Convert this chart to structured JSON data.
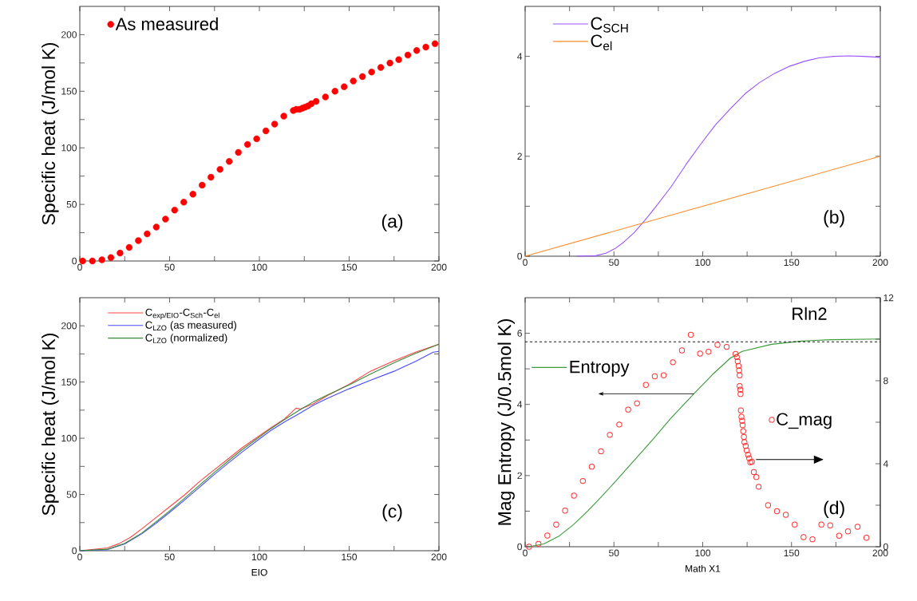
{
  "chart_data": [
    {
      "type": "scatter",
      "ylabel": "Specific heat (J/mol K)",
      "marker": "circle",
      "legend": "top left",
      "xlim": [
        0,
        200
      ],
      "ylim": [
        0,
        225
      ],
      "xticks": [
        0,
        {
          "value": 25,
          "label": null
        },
        50,
        {
          "value": 75,
          "label": null
        },
        100,
        {
          "value": 125,
          "label": null
        },
        150,
        {
          "value": 175,
          "label": null
        },
        200
      ],
      "yticks": [
        0,
        {
          "value": 25,
          "label": null
        },
        50,
        {
          "value": 75,
          "label": null
        },
        100,
        {
          "value": 125,
          "label": null
        },
        150,
        {
          "value": 175,
          "label": null
        },
        200
      ],
      "annotations": [
        "(a)"
      ],
      "series": [
        {
          "name": "As measured",
          "color": "#ff0000",
          "x": [
            1.6,
            7,
            12.3,
            17.3,
            22.4,
            27.5,
            32.6,
            37.5,
            42.6,
            47.7,
            52.8,
            57.9,
            63,
            68.1,
            73,
            78.1,
            83.2,
            88.3,
            93.4,
            98.5,
            103.6,
            108.5,
            113.6,
            118.9,
            120.5,
            122.4,
            124,
            125.5,
            127.1,
            128.9,
            131.6,
            136.8,
            142.1,
            147.2,
            152.3,
            157.4,
            162.5,
            167.6,
            172.7,
            177.6,
            182.7,
            187.6,
            192.7,
            197.8
          ],
          "values": [
            0,
            0,
            1,
            3,
            7,
            12,
            18,
            24,
            30,
            37,
            45,
            52,
            59,
            67,
            74,
            81,
            88,
            96,
            103,
            108,
            115,
            121,
            128,
            133,
            134,
            134,
            135,
            136,
            137,
            139,
            141,
            145,
            150,
            154,
            159,
            163,
            167,
            171,
            175,
            178,
            182,
            186,
            189,
            192
          ]
        }
      ]
    },
    {
      "type": "line",
      "legend": "top left",
      "xlim": [
        0,
        200
      ],
      "ylim": [
        0,
        5
      ],
      "xticks": [
        0,
        {
          "value": 25,
          "label": null
        },
        50,
        {
          "value": 75,
          "label": null
        },
        100,
        {
          "value": 125,
          "label": null
        },
        150,
        {
          "value": 175,
          "label": null
        },
        200
      ],
      "yticks": [
        0,
        {
          "value": 1,
          "label": null
        },
        2,
        {
          "value": 3,
          "label": null
        },
        4
      ],
      "annotations": [
        "(b)"
      ],
      "series": [
        {
          "name": "C$_{SCH}$",
          "color": "#9955ff",
          "x": [
            29,
            39.7,
            45.5,
            50.5,
            55.5,
            61.3,
            67.2,
            73.8,
            82.2,
            90.5,
            98.8,
            107.2,
            115.5,
            123.8,
            132.2,
            140.5,
            148.8,
            157.2,
            165.5,
            173.8,
            182.2,
            190.5,
            200
          ],
          "values": [
            0,
            0.01,
            0.06,
            0.15,
            0.28,
            0.47,
            0.71,
            1.0,
            1.39,
            1.83,
            2.24,
            2.63,
            2.95,
            3.25,
            3.48,
            3.66,
            3.8,
            3.9,
            3.97,
            4.0,
            4.01,
            4.0,
            3.98
          ]
        },
        {
          "name": "C$_{el}$",
          "color": "#ff8c2a",
          "x": [
            0,
            200
          ],
          "values": [
            0,
            2
          ]
        }
      ]
    },
    {
      "type": "line",
      "xlabel": "EIO",
      "ylabel": "Specific heat (J/mol K)",
      "legend": "top left",
      "xlim": [
        0,
        200
      ],
      "ylim": [
        0,
        225
      ],
      "xticks": [
        0,
        {
          "value": 25,
          "label": null
        },
        50,
        {
          "value": 75,
          "label": null
        },
        100,
        {
          "value": 125,
          "label": null
        },
        150,
        {
          "value": 175,
          "label": null
        },
        200
      ],
      "yticks": [
        0,
        {
          "value": 25,
          "label": null
        },
        50,
        {
          "value": 75,
          "label": null
        },
        100,
        {
          "value": 125,
          "label": null
        },
        150,
        {
          "value": 175,
          "label": null
        },
        200
      ],
      "annotations": [
        "(c)"
      ],
      "series": [
        {
          "name": "C$_{exp/EIO}$-C$_{Sch}$-C$_{el}$",
          "color": "#ff4444",
          "x": [
            0,
            15.4,
            21.8,
            28.2,
            34.5,
            42.5,
            50.4,
            58.4,
            66.3,
            74.3,
            82.3,
            90.2,
            98.2,
            106.1,
            114.1,
            120.4,
            122.8,
            130,
            138,
            150,
            161.8,
            175,
            187,
            200
          ],
          "values": [
            0,
            2.5,
            6.3,
            11.9,
            19.4,
            29.5,
            39.6,
            49.7,
            61,
            71.2,
            81.3,
            91.4,
            100.3,
            109,
            117.4,
            126.8,
            126,
            130.6,
            138,
            148,
            159.6,
            169,
            176.5,
            183.6
          ]
        },
        {
          "name": "C$_{LZO}$ (as measured)",
          "color": "#4a4aff",
          "x": [
            0,
            15.4,
            25,
            34.5,
            42.5,
            50.4,
            58.4,
            66.3,
            74.3,
            82.3,
            90.2,
            98.2,
            106.1,
            114.1,
            122,
            130,
            138,
            150,
            161.8,
            175,
            187,
            196.8,
            200
          ],
          "values": [
            0,
            1,
            6,
            15,
            24.5,
            34.6,
            45.2,
            56,
            67,
            77.5,
            87.6,
            97.2,
            106.6,
            114.6,
            121.7,
            129.3,
            135.6,
            144,
            151.5,
            159.6,
            168.4,
            176.5,
            177.3
          ]
        },
        {
          "name": "C$_{LZO}$ (normalized)",
          "color": "#3a8a3a",
          "x": [
            0,
            15.4,
            25,
            34.5,
            42.5,
            50.4,
            58.4,
            66.3,
            74.3,
            82.3,
            90.2,
            98.2,
            106.1,
            114.1,
            122,
            130,
            138,
            150,
            161.8,
            175,
            187,
            200
          ],
          "values": [
            0,
            1.3,
            6.6,
            15.7,
            25.8,
            35.9,
            46.7,
            57.8,
            68.7,
            79.3,
            89.6,
            99,
            108.3,
            116.7,
            124.7,
            132.3,
            138.6,
            147.5,
            157,
            167.2,
            175.5,
            183.6
          ]
        }
      ]
    },
    {
      "type": "line",
      "xlabel": "Math X1",
      "ylabel": "Mag Entropy (J/0.5mol K)",
      "legend": "left",
      "xlim": [
        0,
        200
      ],
      "ylim": [
        0,
        7
      ],
      "y2lim": [
        0,
        12
      ],
      "xticks": [
        0,
        {
          "value": 25,
          "label": null
        },
        50,
        {
          "value": 75,
          "label": null
        },
        100,
        {
          "value": 125,
          "label": null
        },
        150,
        {
          "value": 175,
          "label": null
        },
        200
      ],
      "yticks": [
        0,
        {
          "value": 1,
          "label": null
        },
        2,
        {
          "value": 3,
          "label": null
        },
        4,
        {
          "value": 5,
          "label": null
        },
        6
      ],
      "y2ticks": [
        0,
        {
          "value": 2,
          "label": null
        },
        4,
        {
          "value": 6,
          "label": null
        },
        8,
        {
          "value": 10,
          "label": null
        },
        12
      ],
      "ref_lines": [
        {
          "axis": "y",
          "value": 5.76,
          "label": "Rln2",
          "color": "#000000",
          "line_style": "dashed"
        }
      ],
      "annotations": [
        "(d)"
      ],
      "series": [
        {
          "name": "Entropy",
          "type": "line",
          "color": "#3a9a3a",
          "x": [
            2.2,
            10.5,
            18.8,
            27.2,
            35.5,
            43.8,
            52.2,
            62.2,
            72.2,
            82.2,
            94.7,
            105.5,
            115.5,
            122.2,
            130.5,
            138.8,
            155.5,
            172.2,
            200
          ],
          "values": [
            0,
            0.08,
            0.29,
            0.62,
            1.02,
            1.45,
            1.91,
            2.47,
            3.03,
            3.62,
            4.28,
            4.84,
            5.3,
            5.49,
            5.59,
            5.69,
            5.78,
            5.82,
            5.84
          ]
        },
        {
          "name": "C_mag",
          "type": "scatter",
          "marker": "circle",
          "axis": "y2",
          "color": "#ff3333",
          "x": [
            2.2,
            7.5,
            12.5,
            17.5,
            22.5,
            27.5,
            32.5,
            37.5,
            42.7,
            47.7,
            53,
            58,
            63,
            68,
            73,
            78,
            83.2,
            88.3,
            93.3,
            98.5,
            103.3,
            108.3,
            113.5,
            118.5,
            119.2,
            119.7,
            120.2,
            120.5,
            120.8,
            120.8,
            121.2,
            121.3,
            121.5,
            121.8,
            122.2,
            122.5,
            122.8,
            123.2,
            123.5,
            124.2,
            124.8,
            125.5,
            126.2,
            126.8,
            127.7,
            128.8,
            130.2,
            131.5,
            136.8,
            141.8,
            146.8,
            151.8,
            156.8,
            161.8,
            166.8,
            171.8,
            176.8,
            181.8,
            187.2,
            192.2
          ],
          "values": [
            0,
            0.14,
            0.54,
            1.07,
            1.74,
            2.46,
            3.17,
            3.86,
            4.6,
            5.39,
            5.89,
            6.61,
            6.91,
            7.8,
            8.21,
            8.26,
            8.89,
            9.46,
            10.21,
            9.31,
            9.4,
            9.73,
            9.63,
            9.29,
            9.14,
            8.93,
            8.71,
            8.5,
            8.26,
            7.74,
            7.57,
            7.36,
            6.57,
            6.26,
            6.07,
            5.86,
            5.57,
            5.29,
            5.04,
            4.86,
            4.64,
            4.43,
            4.26,
            4.07,
            4.1,
            3.6,
            3.36,
            2.89,
            2.0,
            1.71,
            1.54,
            1.07,
            0.46,
            0.36,
            1.07,
            1.03,
            0.53,
            0.74,
            0.96,
            0.43
          ]
        }
      ]
    }
  ]
}
